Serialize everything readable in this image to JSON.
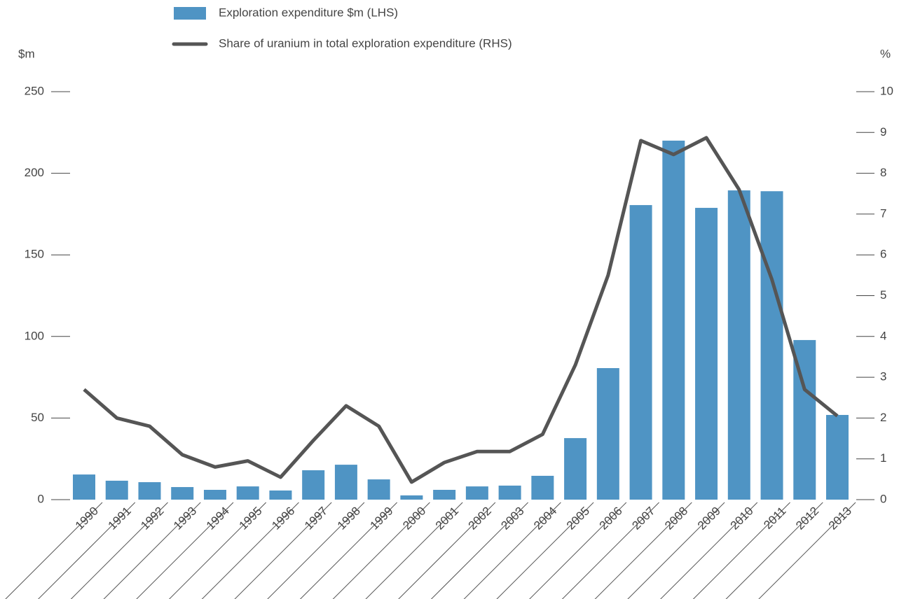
{
  "chart_data": {
    "type": "bar-line",
    "y_label": "$m",
    "y2_label": "%",
    "categories": [
      "1990",
      "1991",
      "1992",
      "1993",
      "1994",
      "1995",
      "1996",
      "1997",
      "1998",
      "1999",
      "2000",
      "2001",
      "2002",
      "2003",
      "2004",
      "2005",
      "2006",
      "2007",
      "2008",
      "2009",
      "2010",
      "2011",
      "2012",
      "2013"
    ],
    "series": [
      {
        "name": "Exploration expenditure $m (LHS)",
        "type": "bar",
        "color": "#4f94c4",
        "values": [
          15.4,
          11.6,
          10.7,
          7.7,
          6,
          8.1,
          5.6,
          18,
          21.4,
          12.4,
          2.6,
          6,
          8.1,
          8.6,
          14.6,
          37.7,
          80.6,
          180.5,
          220,
          178.8,
          189.5,
          189,
          97.8,
          51.9
        ]
      },
      {
        "name": "Share of uranium in total exploration expenditure (RHS)",
        "type": "line",
        "color": "#555555",
        "axis": "y2",
        "values": [
          2.7,
          2.0,
          1.8,
          1.1,
          0.8,
          0.95,
          0.55,
          1.45,
          2.3,
          1.8,
          0.43,
          0.91,
          1.18,
          1.18,
          1.6,
          3.3,
          5.5,
          8.8,
          8.46,
          8.87,
          7.6,
          5.4,
          2.7,
          2.05
        ]
      }
    ],
    "ylim": [
      0,
      250
    ],
    "yticks": [
      0,
      50,
      100,
      150,
      200,
      250
    ],
    "y2lim": [
      0,
      10
    ],
    "y2ticks": [
      0,
      1,
      2,
      3,
      4,
      5,
      6,
      7,
      8,
      9,
      10
    ]
  }
}
